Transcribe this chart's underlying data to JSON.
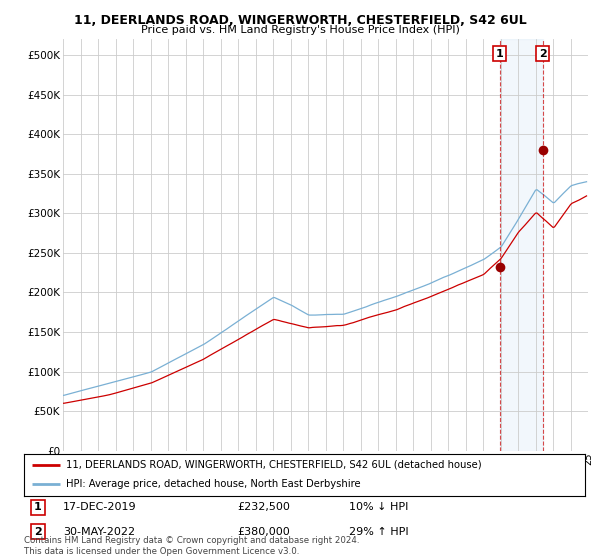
{
  "title": "11, DEERLANDS ROAD, WINGERWORTH, CHESTERFIELD, S42 6UL",
  "subtitle": "Price paid vs. HM Land Registry's House Price Index (HPI)",
  "background_color": "#ffffff",
  "plot_background": "#ffffff",
  "grid_color": "#cccccc",
  "legend_line1": "11, DEERLANDS ROAD, WINGERWORTH, CHESTERFIELD, S42 6UL (detached house)",
  "legend_line2": "HPI: Average price, detached house, North East Derbyshire",
  "copyright": "Contains HM Land Registry data © Crown copyright and database right 2024.\nThis data is licensed under the Open Government Licence v3.0.",
  "annotation1_label": "1",
  "annotation1_date": "17-DEC-2019",
  "annotation1_price": "£232,500",
  "annotation1_hpi": "10% ↓ HPI",
  "annotation2_label": "2",
  "annotation2_date": "30-MAY-2022",
  "annotation2_price": "£380,000",
  "annotation2_hpi": "29% ↑ HPI",
  "red_color": "#cc0000",
  "blue_color": "#7ab0d4",
  "shade_color": "#ddeeff",
  "annotation_dot_color": "#990000",
  "ylim": [
    0,
    520000
  ],
  "yticks": [
    0,
    50000,
    100000,
    150000,
    200000,
    250000,
    300000,
    350000,
    400000,
    450000,
    500000
  ],
  "ann1_year": 2019.96,
  "ann1_y": 232500,
  "ann2_year": 2022.41,
  "ann2_y": 380000,
  "xmin": 1995,
  "xmax": 2025,
  "seed": 42
}
